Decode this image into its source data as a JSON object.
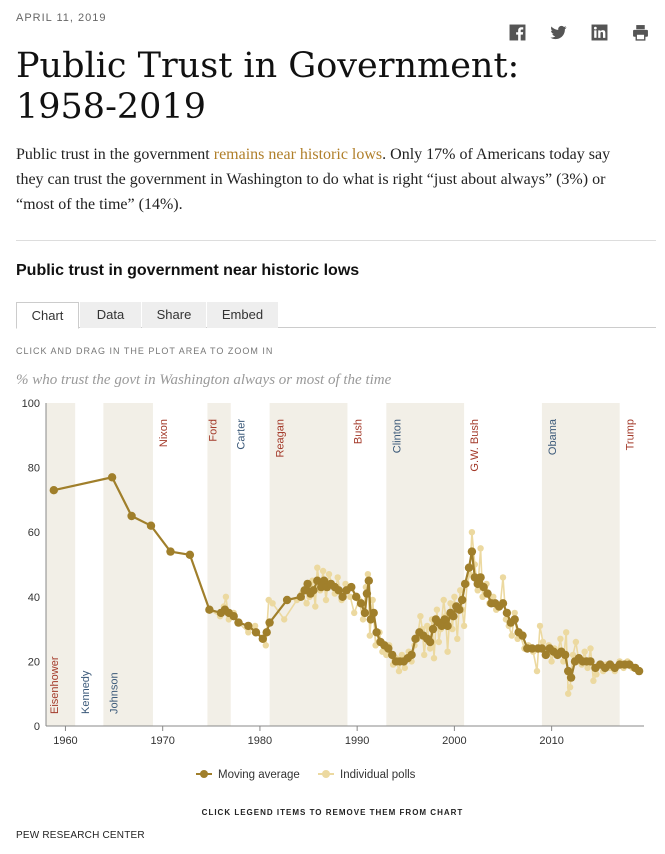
{
  "header": {
    "date": "APRIL 11, 2019",
    "title_line1": "Public Trust in Government:",
    "title_line2": "1958-2019",
    "intro_before": "Public trust in the government ",
    "intro_link": "remains near historic lows",
    "intro_after": ". Only 17% of Americans today say they can trust the government in Washington to do what is right “just about always” (3%) or “most of the time” (14%).",
    "share_icons": [
      "facebook-icon",
      "twitter-icon",
      "linkedin-icon",
      "print-icon"
    ]
  },
  "section": {
    "heading": "Public trust in government near historic lows",
    "tabs": [
      "Chart",
      "Data",
      "Share",
      "Embed"
    ],
    "active_tab": "Chart",
    "zoom_hint": "CLICK AND DRAG IN THE PLOT AREA TO ZOOM IN",
    "legend_hint": "CLICK LEGEND ITEMS TO REMOVE THEM FROM CHART",
    "credit": "PEW RESEARCH CENTER"
  },
  "colors": {
    "moving_average": "#a07f2b",
    "individual_polls": "#ecd9a0",
    "republican": "#a33a2a",
    "democrat": "#3c5a7a",
    "link": "#b07f2a",
    "shading": "#f2efe7"
  },
  "chart_data": {
    "type": "line",
    "title": "",
    "subtitle": "% who trust the govt in Washington always or most of the time",
    "xlabel": "",
    "ylabel": "",
    "xlim": [
      1958,
      2019.5
    ],
    "ylim": [
      0,
      100
    ],
    "xticks": [
      1960,
      1970,
      1980,
      1990,
      2000,
      2010
    ],
    "yticks": [
      0,
      20,
      40,
      60,
      80,
      100
    ],
    "presidents": [
      {
        "name": "Eisenhower",
        "start": 1958.0,
        "end": 1961.0,
        "party": "R",
        "shaded": true
      },
      {
        "name": "Kennedy",
        "start": 1961.0,
        "end": 1963.9,
        "party": "D",
        "shaded": false
      },
      {
        "name": "Johnson",
        "start": 1963.9,
        "end": 1969.0,
        "party": "D",
        "shaded": true
      },
      {
        "name": "Nixon",
        "start": 1969.0,
        "end": 1974.6,
        "party": "R",
        "shaded": false
      },
      {
        "name": "Ford",
        "start": 1974.6,
        "end": 1977.0,
        "party": "R",
        "shaded": true
      },
      {
        "name": "Carter",
        "start": 1977.0,
        "end": 1981.0,
        "party": "D",
        "shaded": false
      },
      {
        "name": "Reagan",
        "start": 1981.0,
        "end": 1989.0,
        "party": "R",
        "shaded": true
      },
      {
        "name": "Bush",
        "start": 1989.0,
        "end": 1993.0,
        "party": "R",
        "shaded": false
      },
      {
        "name": "Clinton",
        "start": 1993.0,
        "end": 2001.0,
        "party": "D",
        "shaded": true
      },
      {
        "name": "G.W. Bush",
        "start": 2001.0,
        "end": 2009.0,
        "party": "R",
        "shaded": false
      },
      {
        "name": "Obama",
        "start": 2009.0,
        "end": 2017.0,
        "party": "D",
        "shaded": true
      },
      {
        "name": "Trump",
        "start": 2017.0,
        "end": 2019.5,
        "party": "R",
        "shaded": false
      }
    ],
    "series": [
      {
        "name": "Individual polls",
        "points": [
          [
            1958.8,
            73
          ],
          [
            1964.8,
            77
          ],
          [
            1966.8,
            65
          ],
          [
            1968.8,
            62
          ],
          [
            1970.8,
            54
          ],
          [
            1972.8,
            53
          ],
          [
            1974.8,
            36
          ],
          [
            1975.9,
            34
          ],
          [
            1976.3,
            37
          ],
          [
            1976.5,
            40
          ],
          [
            1976.8,
            33
          ],
          [
            1977.3,
            35
          ],
          [
            1977.8,
            32
          ],
          [
            1978.8,
            29
          ],
          [
            1979.5,
            31
          ],
          [
            1980.2,
            27
          ],
          [
            1980.6,
            25
          ],
          [
            1980.9,
            39
          ],
          [
            1981.3,
            38
          ],
          [
            1982.5,
            33
          ],
          [
            1983.8,
            39
          ],
          [
            1984.3,
            41
          ],
          [
            1984.8,
            38
          ],
          [
            1985.1,
            40
          ],
          [
            1985.4,
            45
          ],
          [
            1985.7,
            37
          ],
          [
            1985.9,
            49
          ],
          [
            1986.2,
            42
          ],
          [
            1986.5,
            48
          ],
          [
            1986.8,
            39
          ],
          [
            1987.1,
            47
          ],
          [
            1987.4,
            44
          ],
          [
            1987.7,
            41
          ],
          [
            1988.0,
            46
          ],
          [
            1988.4,
            39
          ],
          [
            1988.8,
            44
          ],
          [
            1989.3,
            40
          ],
          [
            1989.7,
            35
          ],
          [
            1990.2,
            39
          ],
          [
            1990.6,
            33
          ],
          [
            1990.9,
            43
          ],
          [
            1991.1,
            47
          ],
          [
            1991.3,
            28
          ],
          [
            1991.6,
            39
          ],
          [
            1991.9,
            25
          ],
          [
            1992.3,
            29
          ],
          [
            1992.6,
            23
          ],
          [
            1993.0,
            22
          ],
          [
            1993.3,
            25
          ],
          [
            1993.7,
            19
          ],
          [
            1994.0,
            21
          ],
          [
            1994.3,
            17
          ],
          [
            1994.6,
            22
          ],
          [
            1994.9,
            18
          ],
          [
            1995.3,
            23
          ],
          [
            1995.6,
            20
          ],
          [
            1995.9,
            25
          ],
          [
            1996.2,
            27
          ],
          [
            1996.5,
            34
          ],
          [
            1996.7,
            30
          ],
          [
            1996.9,
            22
          ],
          [
            1997.2,
            31
          ],
          [
            1997.5,
            24
          ],
          [
            1997.7,
            33
          ],
          [
            1997.9,
            21
          ],
          [
            1998.2,
            36
          ],
          [
            1998.4,
            26
          ],
          [
            1998.6,
            30
          ],
          [
            1998.9,
            39
          ],
          [
            1999.1,
            34
          ],
          [
            1999.3,
            23
          ],
          [
            1999.6,
            38
          ],
          [
            1999.8,
            30
          ],
          [
            2000.0,
            40
          ],
          [
            2000.3,
            27
          ],
          [
            2000.6,
            42
          ],
          [
            2000.8,
            36
          ],
          [
            2001.0,
            31
          ],
          [
            2001.3,
            44
          ],
          [
            2001.6,
            47
          ],
          [
            2001.8,
            60
          ],
          [
            2002.1,
            50
          ],
          [
            2002.4,
            42
          ],
          [
            2002.7,
            55
          ],
          [
            2002.9,
            40
          ],
          [
            2003.3,
            44
          ],
          [
            2003.6,
            38
          ],
          [
            2004.0,
            40
          ],
          [
            2004.3,
            36
          ],
          [
            2004.7,
            37
          ],
          [
            2005.0,
            46
          ],
          [
            2005.3,
            33
          ],
          [
            2005.6,
            31
          ],
          [
            2005.9,
            28
          ],
          [
            2006.2,
            35
          ],
          [
            2006.5,
            27
          ],
          [
            2006.8,
            28
          ],
          [
            2007.2,
            24
          ],
          [
            2007.6,
            25
          ],
          [
            2008.1,
            23
          ],
          [
            2008.5,
            17
          ],
          [
            2008.8,
            31
          ],
          [
            2009.1,
            26
          ],
          [
            2009.4,
            22
          ],
          [
            2009.7,
            25
          ],
          [
            2010.0,
            20
          ],
          [
            2010.3,
            24
          ],
          [
            2010.6,
            22
          ],
          [
            2010.9,
            27
          ],
          [
            2011.2,
            20
          ],
          [
            2011.5,
            29
          ],
          [
            2011.7,
            10
          ],
          [
            2011.9,
            12
          ],
          [
            2012.2,
            22
          ],
          [
            2012.5,
            26
          ],
          [
            2012.8,
            20
          ],
          [
            2013.1,
            19
          ],
          [
            2013.4,
            23
          ],
          [
            2013.7,
            18
          ],
          [
            2014.0,
            24
          ],
          [
            2014.3,
            14
          ],
          [
            2014.6,
            16
          ],
          [
            2015.0,
            19
          ],
          [
            2015.3,
            17
          ],
          [
            2015.6,
            19
          ],
          [
            2016.0,
            18
          ],
          [
            2016.5,
            17
          ],
          [
            2017.0,
            20
          ],
          [
            2017.4,
            18
          ],
          [
            2017.8,
            20
          ],
          [
            2018.3,
            18
          ],
          [
            2019.0,
            17
          ]
        ]
      },
      {
        "name": "Moving average",
        "points": [
          [
            1958.8,
            73
          ],
          [
            1964.8,
            77
          ],
          [
            1966.8,
            65
          ],
          [
            1968.8,
            62
          ],
          [
            1970.8,
            54
          ],
          [
            1972.8,
            53
          ],
          [
            1974.8,
            36
          ],
          [
            1976.0,
            35
          ],
          [
            1976.4,
            36
          ],
          [
            1976.8,
            35
          ],
          [
            1977.3,
            34
          ],
          [
            1977.8,
            32
          ],
          [
            1978.8,
            31
          ],
          [
            1979.6,
            29
          ],
          [
            1980.3,
            27
          ],
          [
            1980.7,
            29
          ],
          [
            1981.0,
            32
          ],
          [
            1982.8,
            39
          ],
          [
            1984.2,
            40
          ],
          [
            1984.6,
            42
          ],
          [
            1984.9,
            44
          ],
          [
            1985.2,
            41
          ],
          [
            1985.5,
            42
          ],
          [
            1985.9,
            45
          ],
          [
            1986.3,
            43
          ],
          [
            1986.6,
            45
          ],
          [
            1986.9,
            43
          ],
          [
            1987.3,
            44
          ],
          [
            1987.7,
            43
          ],
          [
            1988.1,
            42
          ],
          [
            1988.5,
            40
          ],
          [
            1988.9,
            42
          ],
          [
            1989.4,
            43
          ],
          [
            1989.9,
            40
          ],
          [
            1990.4,
            38
          ],
          [
            1990.8,
            35
          ],
          [
            1991.0,
            41
          ],
          [
            1991.2,
            45
          ],
          [
            1991.4,
            33
          ],
          [
            1991.7,
            35
          ],
          [
            1992.0,
            29
          ],
          [
            1992.4,
            26
          ],
          [
            1992.8,
            25
          ],
          [
            1993.2,
            24
          ],
          [
            1993.6,
            22
          ],
          [
            1994.0,
            20
          ],
          [
            1994.4,
            20
          ],
          [
            1994.8,
            20
          ],
          [
            1995.2,
            21
          ],
          [
            1995.6,
            22
          ],
          [
            1996.0,
            27
          ],
          [
            1996.4,
            29
          ],
          [
            1996.8,
            28
          ],
          [
            1997.2,
            27
          ],
          [
            1997.5,
            26
          ],
          [
            1997.8,
            30
          ],
          [
            1998.1,
            33
          ],
          [
            1998.4,
            32
          ],
          [
            1998.7,
            31
          ],
          [
            1999.0,
            33
          ],
          [
            1999.3,
            31
          ],
          [
            1999.6,
            35
          ],
          [
            1999.9,
            34
          ],
          [
            2000.2,
            37
          ],
          [
            2000.5,
            36
          ],
          [
            2000.8,
            39
          ],
          [
            2001.1,
            44
          ],
          [
            2001.5,
            49
          ],
          [
            2001.8,
            54
          ],
          [
            2002.1,
            46
          ],
          [
            2002.4,
            44
          ],
          [
            2002.7,
            46
          ],
          [
            2003.0,
            43
          ],
          [
            2003.4,
            41
          ],
          [
            2003.8,
            38
          ],
          [
            2004.2,
            38
          ],
          [
            2004.6,
            37
          ],
          [
            2005.0,
            38
          ],
          [
            2005.4,
            35
          ],
          [
            2005.8,
            32
          ],
          [
            2006.2,
            33
          ],
          [
            2006.6,
            29
          ],
          [
            2007.0,
            28
          ],
          [
            2007.5,
            24
          ],
          [
            2008.0,
            24
          ],
          [
            2008.6,
            24
          ],
          [
            2009.0,
            24
          ],
          [
            2009.4,
            22
          ],
          [
            2009.8,
            24
          ],
          [
            2010.2,
            23
          ],
          [
            2010.6,
            22
          ],
          [
            2011.0,
            23
          ],
          [
            2011.4,
            22
          ],
          [
            2011.7,
            17
          ],
          [
            2012.0,
            15
          ],
          [
            2012.4,
            20
          ],
          [
            2012.8,
            21
          ],
          [
            2013.2,
            20
          ],
          [
            2013.6,
            20
          ],
          [
            2014.0,
            20
          ],
          [
            2014.5,
            18
          ],
          [
            2015.0,
            19
          ],
          [
            2015.5,
            18
          ],
          [
            2016.0,
            19
          ],
          [
            2016.5,
            18
          ],
          [
            2017.0,
            19
          ],
          [
            2017.5,
            19
          ],
          [
            2018.0,
            19
          ],
          [
            2018.6,
            18
          ],
          [
            2019.0,
            17
          ]
        ]
      }
    ],
    "legend": [
      "Moving average",
      "Individual polls"
    ],
    "legend_position": "bottom-center",
    "grid": false
  }
}
